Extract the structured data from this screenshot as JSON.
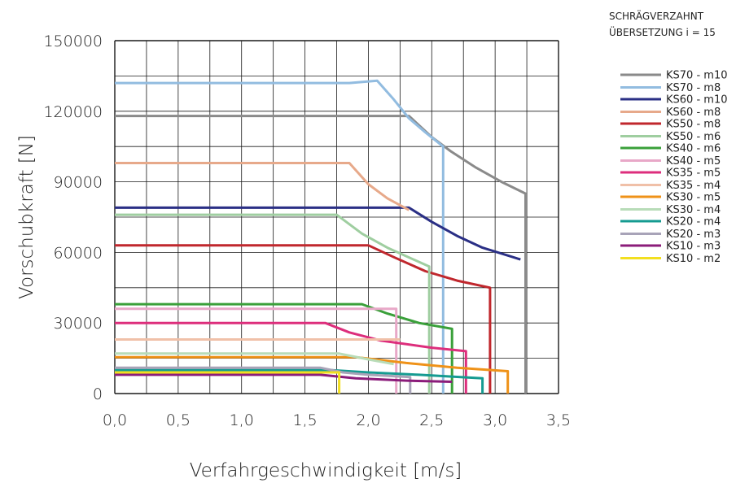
{
  "note": [
    "SCHRÄGVERZAHNT",
    "ÜBERSETZUNG i = 15"
  ],
  "chart_data": {
    "type": "line",
    "xlabel": "Verfahrgeschwindigkeit [m/s]",
    "ylabel": "Vorschubkraft [N]",
    "xlim": [
      0,
      3.5
    ],
    "ylim": [
      0,
      150000
    ],
    "x_ticks": [
      "0,0",
      "0,5",
      "1,0",
      "1,5",
      "2,0",
      "2,5",
      "3,0",
      "3,5"
    ],
    "y_ticks": [
      "0",
      "30000",
      "60000",
      "90000",
      "120000",
      "150000"
    ],
    "grid": true,
    "legend_position": "right",
    "series": [
      {
        "name": "KS70 - m10",
        "color": "#8a8a8a",
        "points": [
          [
            0,
            118000
          ],
          [
            2.32,
            118000
          ],
          [
            2.5,
            109000
          ],
          [
            2.65,
            103000
          ],
          [
            2.85,
            96000
          ],
          [
            3.05,
            90000
          ],
          [
            3.24,
            85000
          ],
          [
            3.24,
            0
          ]
        ]
      },
      {
        "name": "KS70 - m8",
        "color": "#92bce0",
        "points": [
          [
            0,
            132000
          ],
          [
            1.85,
            132000
          ],
          [
            2.07,
            133000
          ],
          [
            2.2,
            125000
          ],
          [
            2.32,
            117000
          ],
          [
            2.45,
            111000
          ],
          [
            2.59,
            105000
          ],
          [
            2.59,
            0
          ]
        ]
      },
      {
        "name": "KS60 - m10",
        "color": "#2a2f85",
        "points": [
          [
            0,
            79000
          ],
          [
            2.32,
            79000
          ],
          [
            2.5,
            73000
          ],
          [
            2.7,
            67000
          ],
          [
            2.9,
            62000
          ],
          [
            3.2,
            57000
          ]
        ]
      },
      {
        "name": "KS60 - m8",
        "color": "#e7a98a",
        "points": [
          [
            0,
            98000
          ],
          [
            1.85,
            98000
          ],
          [
            2.0,
            89000
          ],
          [
            2.15,
            83000
          ],
          [
            2.32,
            78000
          ]
        ]
      },
      {
        "name": "KS50 - m8",
        "color": "#c0272d",
        "points": [
          [
            0,
            63000
          ],
          [
            2.0,
            63000
          ],
          [
            2.2,
            58000
          ],
          [
            2.45,
            52000
          ],
          [
            2.7,
            48000
          ],
          [
            2.96,
            45000
          ],
          [
            2.96,
            0
          ]
        ]
      },
      {
        "name": "KS50 - m6",
        "color": "#9fcea0",
        "points": [
          [
            0,
            76000
          ],
          [
            1.75,
            76000
          ],
          [
            1.95,
            68000
          ],
          [
            2.15,
            62000
          ],
          [
            2.48,
            54000
          ],
          [
            2.48,
            0
          ]
        ]
      },
      {
        "name": "KS40 - m6",
        "color": "#3aa03a",
        "points": [
          [
            0,
            38000
          ],
          [
            1.95,
            38000
          ],
          [
            2.15,
            34000
          ],
          [
            2.4,
            30000
          ],
          [
            2.66,
            27500
          ],
          [
            2.66,
            0
          ]
        ]
      },
      {
        "name": "KS40 - m5",
        "color": "#e8a8c8",
        "points": [
          [
            0,
            36000
          ],
          [
            2.22,
            36000
          ],
          [
            2.22,
            0
          ]
        ]
      },
      {
        "name": "KS35 - m5",
        "color": "#dd2e7c",
        "points": [
          [
            0,
            30000
          ],
          [
            1.66,
            30000
          ],
          [
            1.85,
            26000
          ],
          [
            2.1,
            22500
          ],
          [
            2.5,
            19500
          ],
          [
            2.77,
            18000
          ],
          [
            2.77,
            0
          ]
        ]
      },
      {
        "name": "KS35 - m4",
        "color": "#f0c0a8",
        "points": [
          [
            0,
            23000
          ],
          [
            2.25,
            23000
          ]
        ]
      },
      {
        "name": "KS30 - m5",
        "color": "#ef9218",
        "points": [
          [
            0,
            15500
          ],
          [
            1.9,
            15500
          ],
          [
            2.3,
            13000
          ],
          [
            2.7,
            11000
          ],
          [
            3.1,
            9500
          ],
          [
            3.1,
            0
          ]
        ]
      },
      {
        "name": "KS30 - m4",
        "color": "#b8dcb8",
        "points": [
          [
            0,
            17000
          ],
          [
            1.77,
            17000
          ],
          [
            2.0,
            14500
          ],
          [
            2.2,
            12500
          ]
        ]
      },
      {
        "name": "KS20 - m4",
        "color": "#159b91",
        "points": [
          [
            0,
            10000
          ],
          [
            1.7,
            10000
          ],
          [
            2.0,
            9000
          ],
          [
            2.4,
            8000
          ],
          [
            2.9,
            6500
          ],
          [
            2.9,
            0
          ]
        ]
      },
      {
        "name": "KS20 - m3",
        "color": "#a8a3b8",
        "points": [
          [
            0,
            11000
          ],
          [
            1.62,
            11000
          ],
          [
            1.8,
            9000
          ],
          [
            2.0,
            8000
          ],
          [
            2.33,
            7000
          ],
          [
            2.33,
            0
          ]
        ]
      },
      {
        "name": "KS10 - m3",
        "color": "#8b1c7a",
        "points": [
          [
            0,
            8000
          ],
          [
            1.62,
            8000
          ],
          [
            1.9,
            6500
          ],
          [
            2.3,
            5500
          ],
          [
            2.66,
            5000
          ]
        ]
      },
      {
        "name": "KS10 - m2",
        "color": "#f2df20",
        "points": [
          [
            0,
            9000
          ],
          [
            1.77,
            9000
          ],
          [
            1.77,
            0
          ]
        ]
      }
    ]
  }
}
